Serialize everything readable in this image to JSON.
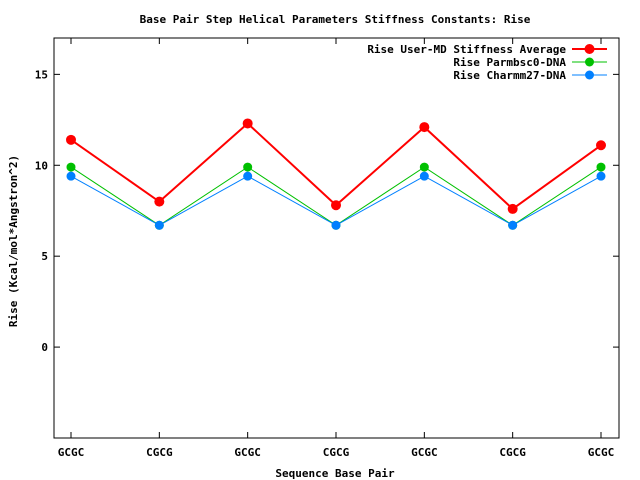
{
  "chart_data": {
    "type": "line",
    "title": "Base Pair Step Helical Parameters Stiffness Constants: Rise",
    "xlabel": "Sequence Base Pair",
    "ylabel": "Rise (Kcal/mol*Angstron^2)",
    "categories": [
      "GCGC",
      "CGCG",
      "GCGC",
      "CGCG",
      "GCGC",
      "CGCG",
      "GCGC"
    ],
    "ylim": [
      -5,
      17
    ],
    "yticks": [
      0,
      5,
      10,
      15
    ],
    "grid": false,
    "legend_position": "top-right",
    "series": [
      {
        "name": "Rise User-MD Stiffness Average",
        "color": "#ff0000",
        "values": [
          11.4,
          8.0,
          12.3,
          7.8,
          12.1,
          7.6,
          11.1
        ]
      },
      {
        "name": "Rise Parmbsc0-DNA",
        "color": "#00c000",
        "values": [
          9.9,
          6.7,
          9.9,
          6.7,
          9.9,
          6.7,
          9.9
        ]
      },
      {
        "name": "Rise Charmm27-DNA",
        "color": "#0080ff",
        "values": [
          9.4,
          6.7,
          9.4,
          6.7,
          9.4,
          6.7,
          9.4
        ]
      }
    ]
  }
}
